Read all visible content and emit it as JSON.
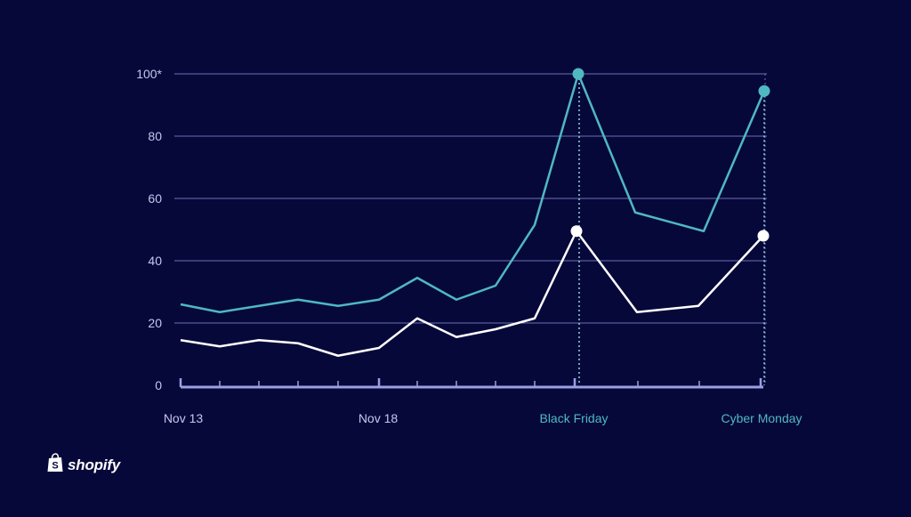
{
  "chart_data": {
    "type": "line",
    "x_tick_labels": [
      {
        "index": 0,
        "label": "Nov 13",
        "highlight": false
      },
      {
        "index": 5,
        "label": "Nov 18",
        "highlight": false
      },
      {
        "index": 10,
        "label": "Black Friday",
        "highlight": true
      },
      {
        "index": 14,
        "label": "Cyber Monday",
        "highlight": true
      }
    ],
    "y_ticks": [
      {
        "value": 0,
        "label": "0"
      },
      {
        "value": 20,
        "label": "20"
      },
      {
        "value": 40,
        "label": "40"
      },
      {
        "value": 60,
        "label": "60"
      },
      {
        "value": 80,
        "label": "80"
      },
      {
        "value": 100,
        "label": "100*"
      }
    ],
    "ylim": [
      0,
      100
    ],
    "x_count": 16,
    "series": [
      {
        "color": "#4fb8c1",
        "x": [
          0,
          1,
          2,
          3,
          4,
          5,
          6,
          7,
          8,
          9,
          10,
          11.6,
          13.3,
          14.7
        ],
        "values": [
          26,
          23.5,
          25.5,
          27.5,
          25.5,
          27.5,
          34.5,
          27.5,
          32,
          51.5,
          100,
          55.5,
          49.5,
          94.5
        ],
        "markers": [
          10,
          13
        ]
      },
      {
        "color": "#ffffff",
        "x": [
          0,
          1,
          2,
          3,
          4,
          5,
          6,
          7,
          8,
          9,
          10,
          11.6,
          13.3,
          14.7
        ],
        "values": [
          14.5,
          12.5,
          14.5,
          13.5,
          9.5,
          12,
          21.5,
          15.5,
          18,
          21.5,
          49.5,
          23.5,
          25.5,
          48
        ],
        "markers": [
          10,
          13
        ]
      }
    ],
    "grid": true,
    "legend": "none",
    "colors": {
      "background": "#07083a",
      "grid": "#6d6fb3",
      "axis": "#9aa0e0",
      "tick_label": "#c5c7ee",
      "highlight_label": "#4fb8c1"
    }
  },
  "brand": {
    "name": "shopify",
    "icon": "shopify-bag-icon"
  }
}
